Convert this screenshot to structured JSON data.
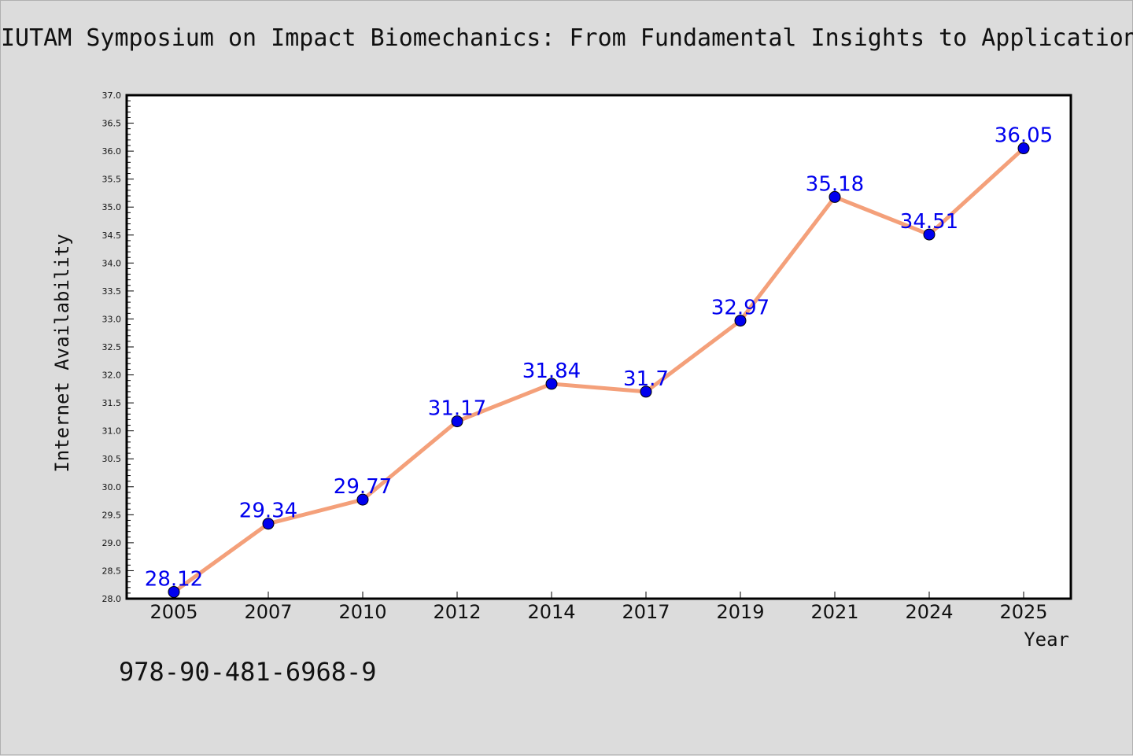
{
  "chart_data": {
    "type": "line",
    "title": "IUTAM Symposium on Impact Biomechanics: From Fundamental Insights to Applications",
    "xlabel": "Year",
    "ylabel": "Internet Availability",
    "categories": [
      "2005",
      "2007",
      "2010",
      "2012",
      "2014",
      "2017",
      "2019",
      "2021",
      "2024",
      "2025"
    ],
    "series": [
      {
        "values": [
          28.12,
          29.34,
          29.77,
          31.17,
          31.84,
          31.7,
          32.97,
          35.18,
          34.51,
          36.05
        ],
        "labels": [
          "28.12",
          "29.34",
          "29.77",
          "31.17",
          "31.84",
          "31.7",
          "32.97",
          "35.18",
          "34.51",
          "36.05"
        ]
      }
    ],
    "ylim": [
      28.0,
      37.0
    ],
    "yticks": [
      "28.0",
      "28.5",
      "29.0",
      "29.5",
      "30.0",
      "30.5",
      "31.0",
      "31.5",
      "32.0",
      "32.5",
      "33.0",
      "33.5",
      "34.0",
      "34.5",
      "35.0",
      "35.5",
      "36.0",
      "36.5",
      "37.0"
    ],
    "grid": false,
    "colors": {
      "line": "#f4a07a",
      "marker": "#0000ee",
      "label": "#0000ee",
      "background": "#dcdcdc",
      "plot_background": "#ffffff"
    }
  },
  "footer": {
    "isbn": "978-90-481-6968-9"
  }
}
